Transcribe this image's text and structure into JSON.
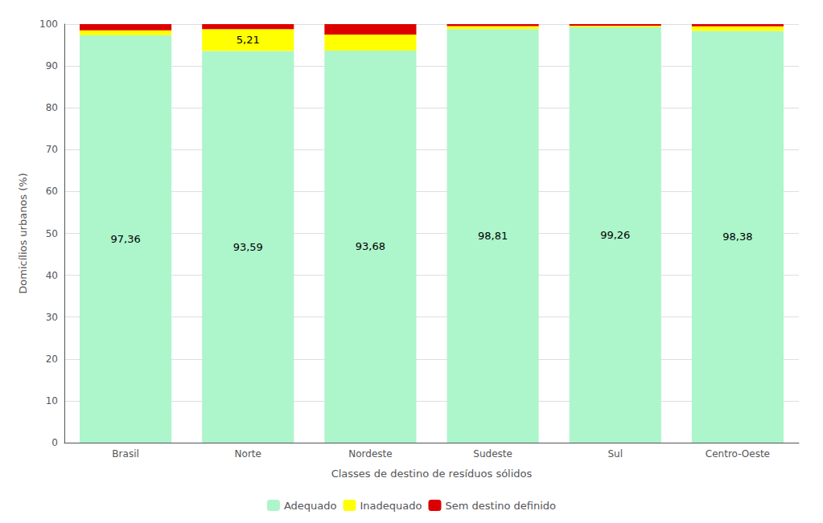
{
  "chart_data": {
    "type": "bar",
    "stacked": true,
    "xlabel": "Classes de destino de resíduos sólidos",
    "ylabel": "Domicílios urbanos (%)",
    "categories": [
      "Brasil",
      "Norte",
      "Nordeste",
      "Sudeste",
      "Sul",
      "Centro-Oeste"
    ],
    "series": [
      {
        "name": "Adequado",
        "color": "#adf5cb",
        "values": [
          97.36,
          93.59,
          93.68,
          98.81,
          99.26,
          98.38
        ],
        "value_labels": [
          "97,36",
          "93,59",
          "93,68",
          "98,81",
          "99,26",
          "98,38"
        ]
      },
      {
        "name": "Inadequado",
        "color": "#ffff00",
        "values": [
          1.14,
          5.21,
          3.82,
          0.69,
          0.38,
          1.1
        ],
        "value_labels": [
          null,
          "5,21",
          null,
          null,
          null,
          null
        ]
      },
      {
        "name": "Sem destino definido",
        "color": "#dd0000",
        "values": [
          1.5,
          1.2,
          2.5,
          0.5,
          0.36,
          0.52
        ]
      }
    ],
    "ylim": [
      0,
      100
    ],
    "yticks": [
      0,
      10,
      20,
      30,
      40,
      50,
      60,
      70,
      80,
      90,
      100
    ],
    "grid": true,
    "legend": "bottom"
  }
}
